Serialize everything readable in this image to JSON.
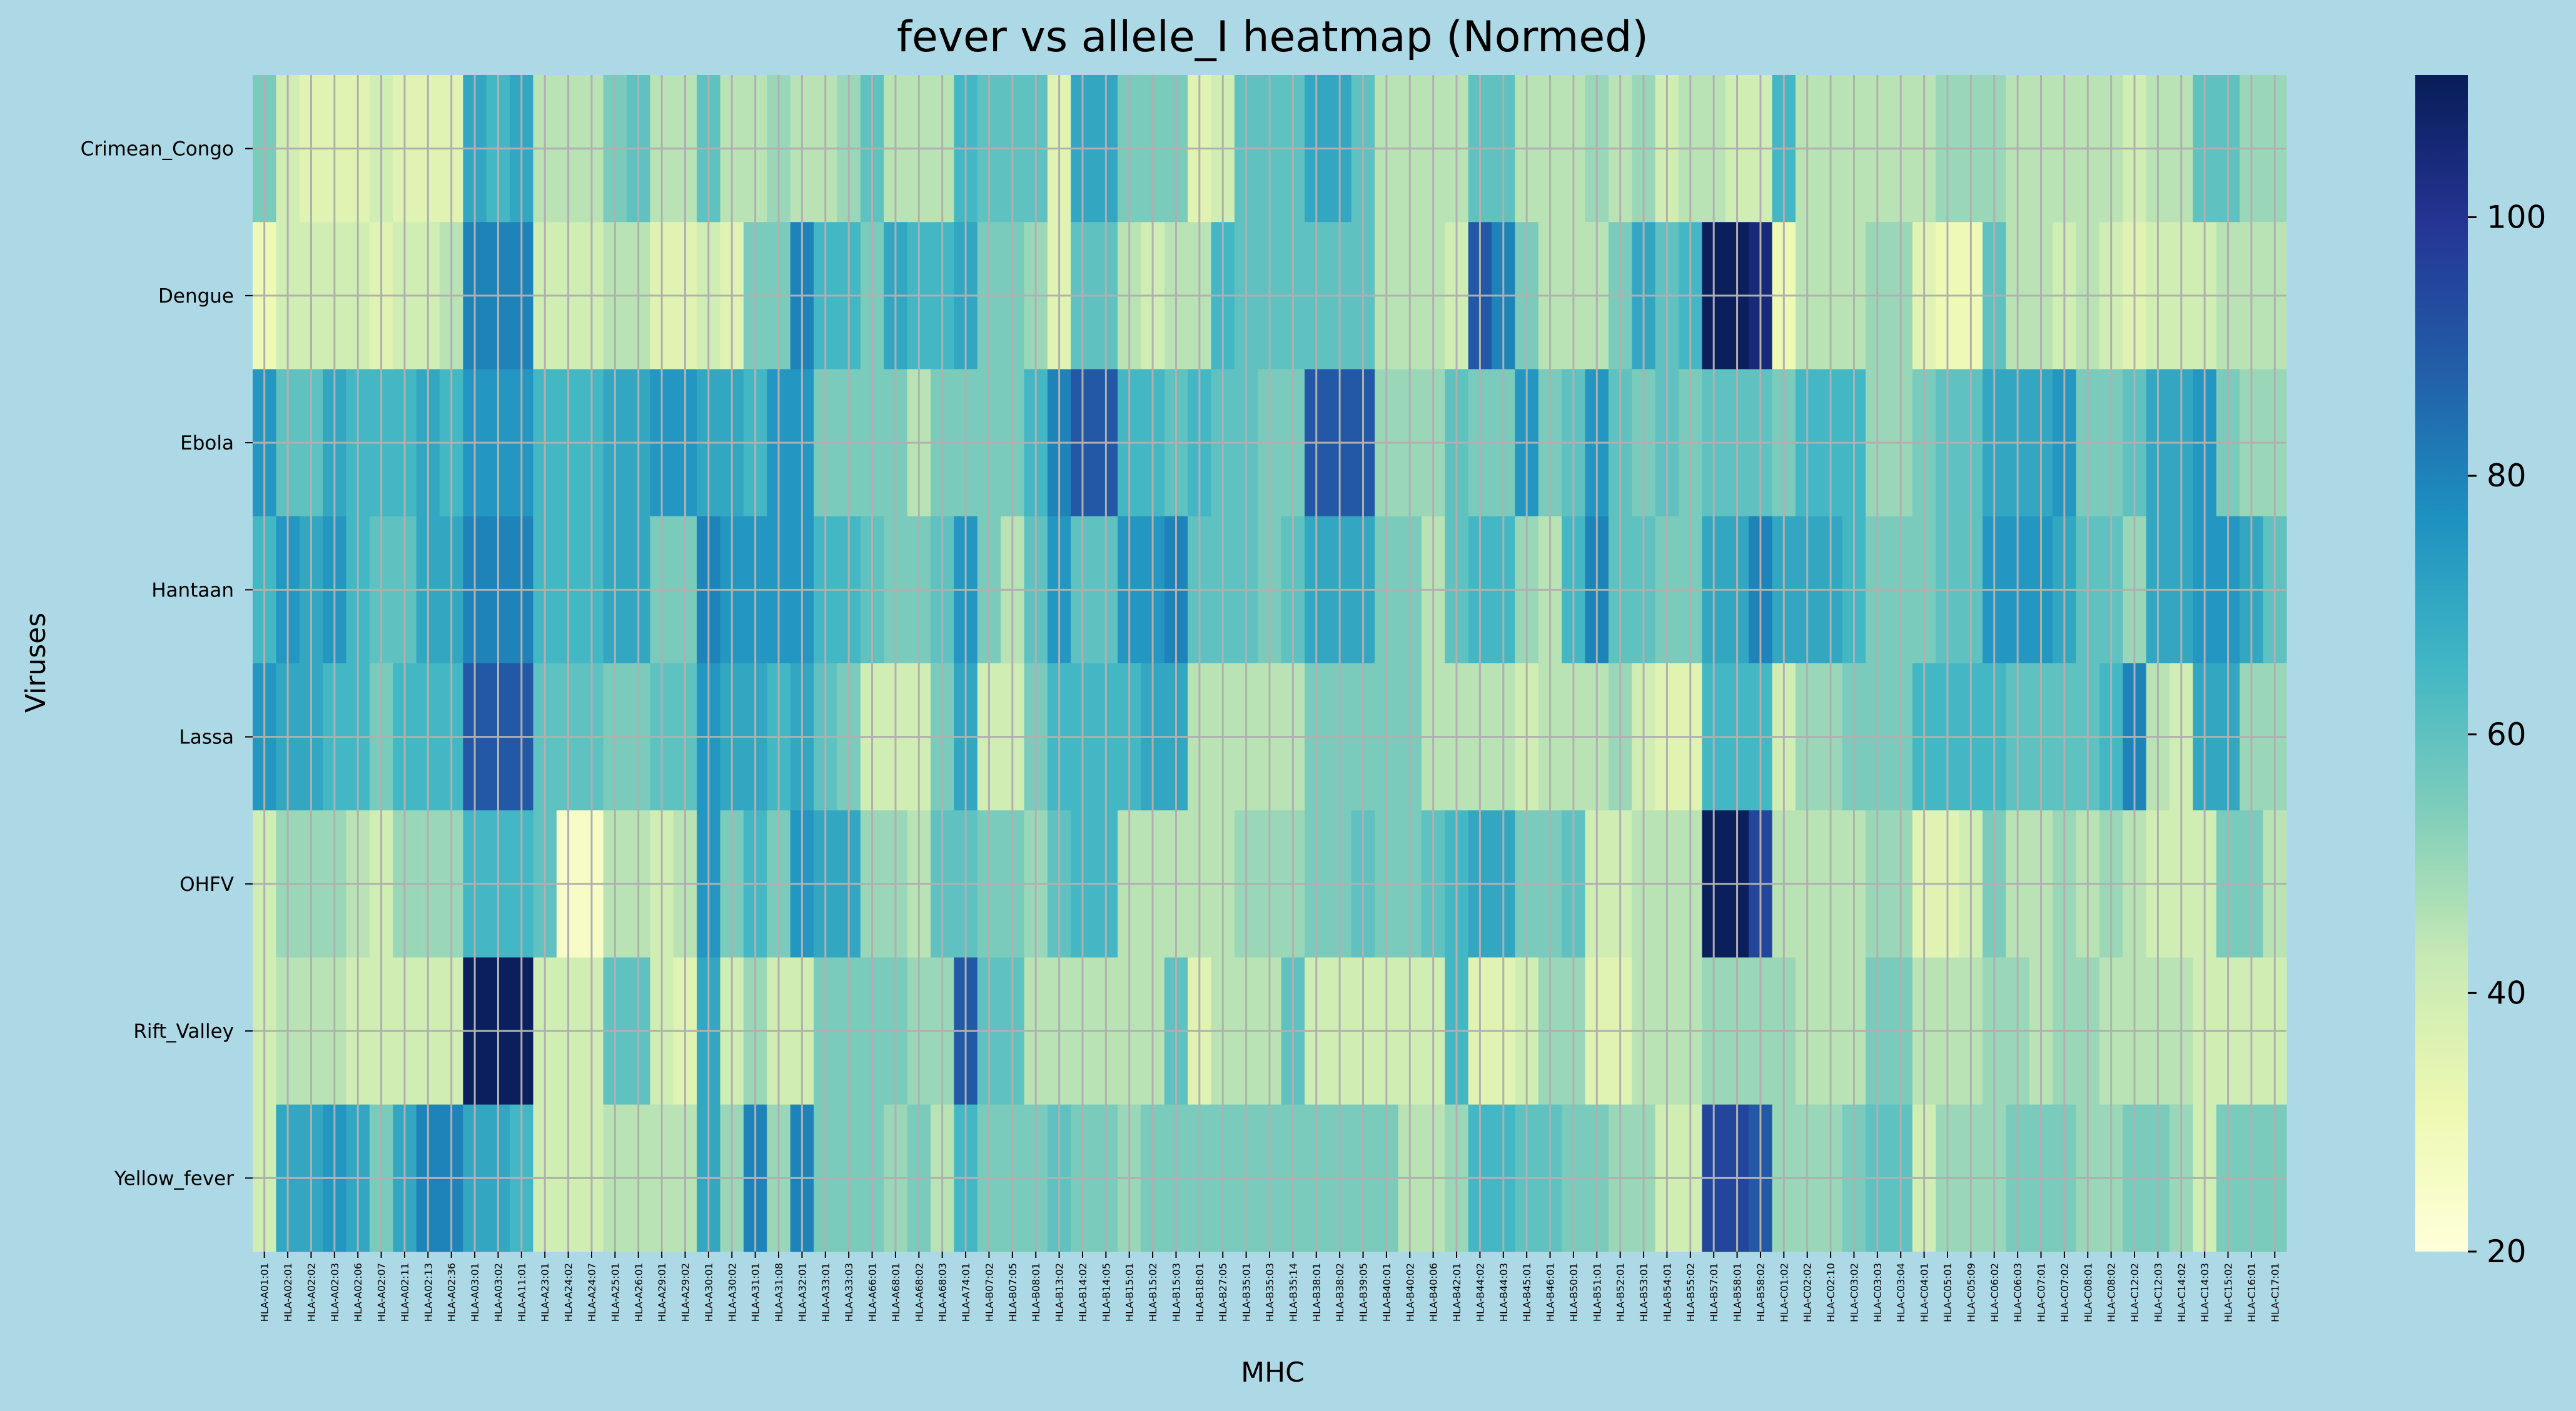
{
  "chart_data": {
    "type": "heatmap",
    "title": "fever vs allele_I heatmap (Normed)",
    "xlabel": "MHC",
    "ylabel": "Viruses",
    "rows": [
      "Crimean_Congo",
      "Dengue",
      "Ebola",
      "Hantaan",
      "Lassa",
      "OHFV",
      "Rift_Valley",
      "Yellow_fever"
    ],
    "columns": [
      "HLA-A01:01",
      "HLA-A02:01",
      "HLA-A02:02",
      "HLA-A02:03",
      "HLA-A02:06",
      "HLA-A02:07",
      "HLA-A02:11",
      "HLA-A02:13",
      "HLA-A02:36",
      "HLA-A03:01",
      "HLA-A03:02",
      "HLA-A11:01",
      "HLA-A23:01",
      "HLA-A24:02",
      "HLA-A24:07",
      "HLA-A25:01",
      "HLA-A26:01",
      "HLA-A29:01",
      "HLA-A29:02",
      "HLA-A30:01",
      "HLA-A30:02",
      "HLA-A31:01",
      "HLA-A31:08",
      "HLA-A32:01",
      "HLA-A33:01",
      "HLA-A33:03",
      "HLA-A66:01",
      "HLA-A68:01",
      "HLA-A68:02",
      "HLA-A68:03",
      "HLA-A74:01",
      "HLA-B07:02",
      "HLA-B07:05",
      "HLA-B08:01",
      "HLA-B13:02",
      "HLA-B14:02",
      "HLA-B14:05",
      "HLA-B15:01",
      "HLA-B15:02",
      "HLA-B15:03",
      "HLA-B18:01",
      "HLA-B27:05",
      "HLA-B35:01",
      "HLA-B35:03",
      "HLA-B35:14",
      "HLA-B38:01",
      "HLA-B38:02",
      "HLA-B39:05",
      "HLA-B40:01",
      "HLA-B40:02",
      "HLA-B40:06",
      "HLA-B42:01",
      "HLA-B44:02",
      "HLA-B44:03",
      "HLA-B45:01",
      "HLA-B46:01",
      "HLA-B50:01",
      "HLA-B51:01",
      "HLA-B52:01",
      "HLA-B53:01",
      "HLA-B54:01",
      "HLA-B55:02",
      "HLA-B57:01",
      "HLA-B58:01",
      "HLA-B58:02",
      "HLA-C01:02",
      "HLA-C02:02",
      "HLA-C02:10",
      "HLA-C03:02",
      "HLA-C03:03",
      "HLA-C03:04",
      "HLA-C04:01",
      "HLA-C05:01",
      "HLA-C05:09",
      "HLA-C06:02",
      "HLA-C06:03",
      "HLA-C07:01",
      "HLA-C07:02",
      "HLA-C08:01",
      "HLA-C08:02",
      "HLA-C12:02",
      "HLA-C12:03",
      "HLA-C14:02",
      "HLA-C14:03",
      "HLA-C15:02",
      "HLA-C16:01",
      "HLA-C17:01"
    ],
    "values": [
      [
        55,
        40,
        35,
        35,
        35,
        40,
        35,
        35,
        35,
        70,
        65,
        70,
        45,
        45,
        45,
        55,
        60,
        45,
        45,
        60,
        45,
        45,
        50,
        45,
        45,
        50,
        60,
        45,
        45,
        45,
        65,
        60,
        60,
        60,
        35,
        70,
        70,
        55,
        55,
        55,
        35,
        40,
        60,
        60,
        60,
        70,
        70,
        60,
        45,
        45,
        45,
        45,
        60,
        60,
        45,
        45,
        45,
        50,
        45,
        50,
        40,
        45,
        45,
        40,
        40,
        65,
        45,
        45,
        45,
        45,
        45,
        45,
        50,
        50,
        50,
        45,
        45,
        45,
        45,
        45,
        40,
        45,
        45,
        60,
        60,
        50,
        50
      ],
      [
        30,
        40,
        40,
        40,
        40,
        35,
        40,
        40,
        45,
        80,
        80,
        80,
        40,
        40,
        40,
        45,
        45,
        35,
        35,
        40,
        35,
        55,
        55,
        80,
        65,
        65,
        55,
        70,
        65,
        65,
        70,
        55,
        55,
        50,
        35,
        60,
        60,
        45,
        40,
        45,
        45,
        65,
        60,
        60,
        60,
        60,
        60,
        60,
        45,
        45,
        45,
        40,
        90,
        80,
        55,
        45,
        45,
        45,
        55,
        70,
        60,
        65,
        110,
        110,
        105,
        30,
        45,
        45,
        45,
        50,
        50,
        35,
        30,
        30,
        60,
        45,
        45,
        40,
        45,
        40,
        35,
        40,
        40,
        40,
        45,
        45,
        45
      ],
      [
        75,
        60,
        60,
        70,
        65,
        65,
        65,
        70,
        65,
        75,
        75,
        75,
        65,
        65,
        65,
        70,
        70,
        75,
        75,
        70,
        70,
        65,
        75,
        75,
        55,
        55,
        55,
        55,
        45,
        55,
        55,
        55,
        55,
        65,
        80,
        90,
        90,
        65,
        65,
        60,
        65,
        60,
        60,
        55,
        55,
        90,
        90,
        90,
        50,
        50,
        50,
        60,
        55,
        55,
        75,
        55,
        60,
        75,
        60,
        55,
        60,
        55,
        60,
        60,
        60,
        55,
        65,
        65,
        65,
        50,
        50,
        55,
        60,
        60,
        70,
        70,
        70,
        75,
        55,
        55,
        60,
        70,
        70,
        75,
        55,
        50,
        50
      ],
      [
        65,
        75,
        70,
        75,
        65,
        60,
        60,
        70,
        70,
        80,
        80,
        80,
        65,
        65,
        65,
        70,
        70,
        55,
        55,
        80,
        75,
        75,
        75,
        75,
        65,
        65,
        60,
        55,
        55,
        60,
        75,
        55,
        45,
        60,
        75,
        60,
        60,
        75,
        75,
        80,
        60,
        60,
        60,
        55,
        60,
        70,
        70,
        70,
        55,
        55,
        45,
        60,
        65,
        65,
        50,
        45,
        65,
        80,
        60,
        60,
        55,
        55,
        70,
        70,
        80,
        70,
        70,
        70,
        65,
        55,
        55,
        55,
        60,
        60,
        75,
        75,
        75,
        70,
        60,
        60,
        50,
        70,
        70,
        75,
        75,
        70,
        60
      ],
      [
        75,
        70,
        70,
        65,
        65,
        55,
        65,
        65,
        65,
        90,
        90,
        90,
        60,
        60,
        60,
        55,
        55,
        60,
        60,
        75,
        70,
        70,
        65,
        70,
        60,
        55,
        40,
        40,
        40,
        55,
        70,
        40,
        40,
        55,
        65,
        65,
        65,
        65,
        70,
        70,
        45,
        45,
        45,
        45,
        45,
        55,
        55,
        55,
        55,
        55,
        45,
        45,
        45,
        45,
        40,
        45,
        45,
        45,
        50,
        40,
        35,
        35,
        65,
        65,
        65,
        40,
        50,
        50,
        55,
        55,
        55,
        65,
        65,
        65,
        65,
        60,
        60,
        60,
        60,
        65,
        80,
        45,
        40,
        70,
        70,
        50,
        50
      ],
      [
        40,
        50,
        50,
        50,
        45,
        40,
        50,
        50,
        50,
        65,
        65,
        65,
        60,
        25,
        25,
        45,
        45,
        40,
        45,
        75,
        55,
        65,
        55,
        75,
        70,
        70,
        50,
        50,
        45,
        60,
        60,
        55,
        55,
        50,
        60,
        65,
        65,
        45,
        45,
        45,
        45,
        45,
        50,
        50,
        50,
        55,
        55,
        60,
        55,
        55,
        60,
        65,
        70,
        70,
        55,
        55,
        60,
        40,
        40,
        45,
        45,
        45,
        110,
        110,
        95,
        45,
        45,
        45,
        45,
        50,
        50,
        35,
        35,
        40,
        55,
        45,
        45,
        50,
        45,
        50,
        45,
        40,
        40,
        40,
        55,
        55,
        45
      ],
      [
        40,
        45,
        45,
        45,
        40,
        40,
        40,
        40,
        40,
        110,
        110,
        110,
        40,
        40,
        40,
        60,
        60,
        40,
        35,
        70,
        40,
        50,
        40,
        40,
        55,
        55,
        55,
        55,
        50,
        50,
        90,
        60,
        60,
        45,
        45,
        45,
        45,
        45,
        45,
        60,
        35,
        45,
        45,
        45,
        60,
        40,
        40,
        40,
        40,
        40,
        40,
        65,
        35,
        35,
        40,
        50,
        50,
        35,
        35,
        45,
        45,
        45,
        50,
        50,
        50,
        50,
        45,
        45,
        45,
        55,
        55,
        45,
        45,
        45,
        50,
        50,
        45,
        50,
        50,
        45,
        45,
        45,
        45,
        40,
        40,
        40,
        40
      ],
      [
        40,
        70,
        70,
        75,
        70,
        55,
        70,
        80,
        80,
        70,
        70,
        65,
        40,
        40,
        40,
        45,
        45,
        45,
        45,
        70,
        50,
        80,
        50,
        80,
        55,
        55,
        55,
        50,
        55,
        45,
        65,
        55,
        55,
        55,
        60,
        55,
        55,
        50,
        55,
        55,
        55,
        55,
        55,
        55,
        55,
        55,
        55,
        55,
        55,
        45,
        45,
        50,
        65,
        65,
        60,
        60,
        55,
        55,
        50,
        50,
        40,
        40,
        95,
        95,
        90,
        50,
        50,
        50,
        55,
        60,
        60,
        40,
        50,
        50,
        50,
        55,
        55,
        55,
        50,
        50,
        55,
        55,
        50,
        40,
        55,
        55,
        55
      ]
    ],
    "colorbar": {
      "ticks": [
        20,
        40,
        60,
        80,
        100
      ],
      "min": 20,
      "max": 111,
      "colormap": "YlGnBu"
    },
    "grid": true,
    "colors": {
      "background": "#add8e6",
      "grid": "#b0b0b0"
    }
  }
}
